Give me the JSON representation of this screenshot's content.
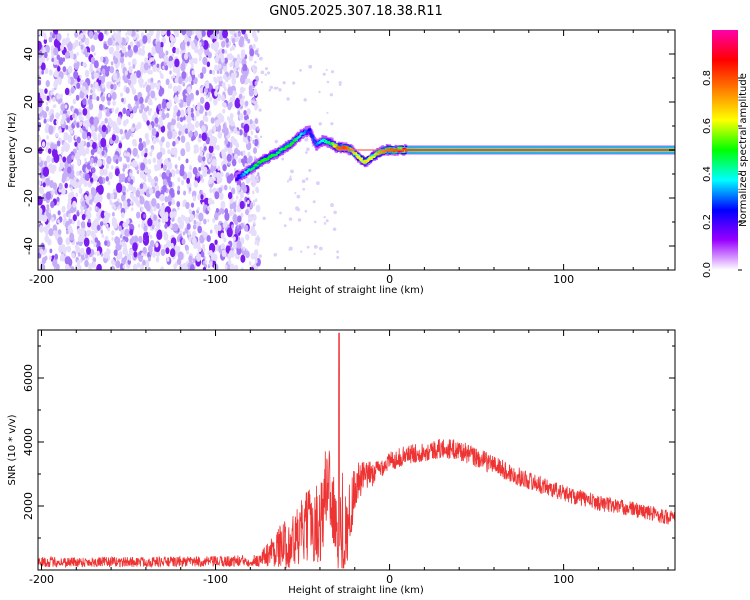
{
  "title": "GN05.2025.307.18.38.R11",
  "chart_data": [
    {
      "type": "heatmap",
      "title": "GN05.2025.307.18.38.R11",
      "xlabel": "Height of straight line (km)",
      "ylabel": "Frequency (Hz)",
      "xlim": [
        -202,
        164
      ],
      "ylim": [
        -50,
        50
      ],
      "x_ticks": [
        -200,
        -100,
        0,
        100
      ],
      "x_tick_labels": [
        "-200",
        "-100",
        "0",
        "100"
      ],
      "y_ticks": [
        40,
        20,
        0,
        -20,
        -40
      ],
      "y_tick_labels": [
        "40",
        "20",
        "0",
        "-20",
        "-40"
      ],
      "noise_region_x": [
        -202,
        -80
      ],
      "colorbar": {
        "label": "Normalized spectral amplitude",
        "range": [
          0,
          1
        ],
        "ticks": [
          0.0,
          0.2,
          0.4,
          0.6,
          0.8
        ],
        "tick_labels": [
          "0.0",
          "0.2",
          "0.4",
          "0.6",
          "0.8"
        ],
        "colors": [
          "#ffffff",
          "#9900ff",
          "#0000ff",
          "#00ffff",
          "#00ff00",
          "#ffff00",
          "#ff7f00",
          "#ff0000",
          "#ff00aa"
        ]
      },
      "ridge": {
        "x": [
          -88,
          -80,
          -72,
          -64,
          -56,
          -50,
          -46,
          -42,
          -38,
          -34,
          -30,
          -26,
          -22,
          -18,
          -14,
          -10,
          -6,
          -2,
          2,
          6,
          10,
          20,
          60,
          100,
          140,
          164
        ],
        "frequency": [
          -12,
          -8,
          -4,
          -1,
          3,
          7,
          8,
          2,
          4,
          3,
          1,
          1,
          0,
          -3,
          -5,
          -3,
          -1,
          0,
          0,
          0,
          0,
          0,
          0,
          0,
          0,
          0
        ],
        "amplitude": [
          0.2,
          0.45,
          0.5,
          0.45,
          0.5,
          0.35,
          0.25,
          0.3,
          0.4,
          0.45,
          0.75,
          0.8,
          0.7,
          0.6,
          0.65,
          0.6,
          0.7,
          0.75,
          0.8,
          0.85,
          0.88,
          0.9,
          0.9,
          0.9,
          0.9,
          0.9
        ]
      }
    },
    {
      "type": "line",
      "xlabel": "Height of straight line (km)",
      "ylabel": "SNR (10 * v/v)",
      "xlim": [
        -202,
        164
      ],
      "ylim": [
        0,
        7500
      ],
      "x_ticks": [
        -200,
        -100,
        0,
        100
      ],
      "x_tick_labels": [
        "-200",
        "-100",
        "0",
        "100"
      ],
      "y_ticks": [
        2000,
        4000,
        6000
      ],
      "y_tick_labels": [
        "2000",
        "4000",
        "6000"
      ],
      "color": "#ee3333",
      "envelope": {
        "x": [
          -202,
          -150,
          -100,
          -75,
          -65,
          -55,
          -45,
          -40,
          -35,
          -30,
          -28,
          -27,
          -25,
          -20,
          -15,
          -10,
          -5,
          0,
          10,
          20,
          30,
          40,
          50,
          60,
          70,
          80,
          100,
          120,
          140,
          164
        ],
        "mean": [
          250,
          250,
          260,
          300,
          700,
          900,
          1500,
          1400,
          3000,
          900,
          2200,
          1500,
          1100,
          2600,
          2900,
          3000,
          3200,
          3400,
          3600,
          3700,
          3800,
          3750,
          3500,
          3300,
          3000,
          2800,
          2400,
          2100,
          1900,
          1600
        ],
        "spread": [
          160,
          160,
          170,
          200,
          600,
          900,
          1200,
          1300,
          1600,
          1100,
          2000,
          1800,
          1200,
          800,
          500,
          400,
          300,
          300,
          300,
          300,
          320,
          320,
          320,
          300,
          300,
          280,
          260,
          250,
          240,
          240
        ]
      },
      "peak": {
        "x": -29,
        "value": 7400
      }
    }
  ]
}
